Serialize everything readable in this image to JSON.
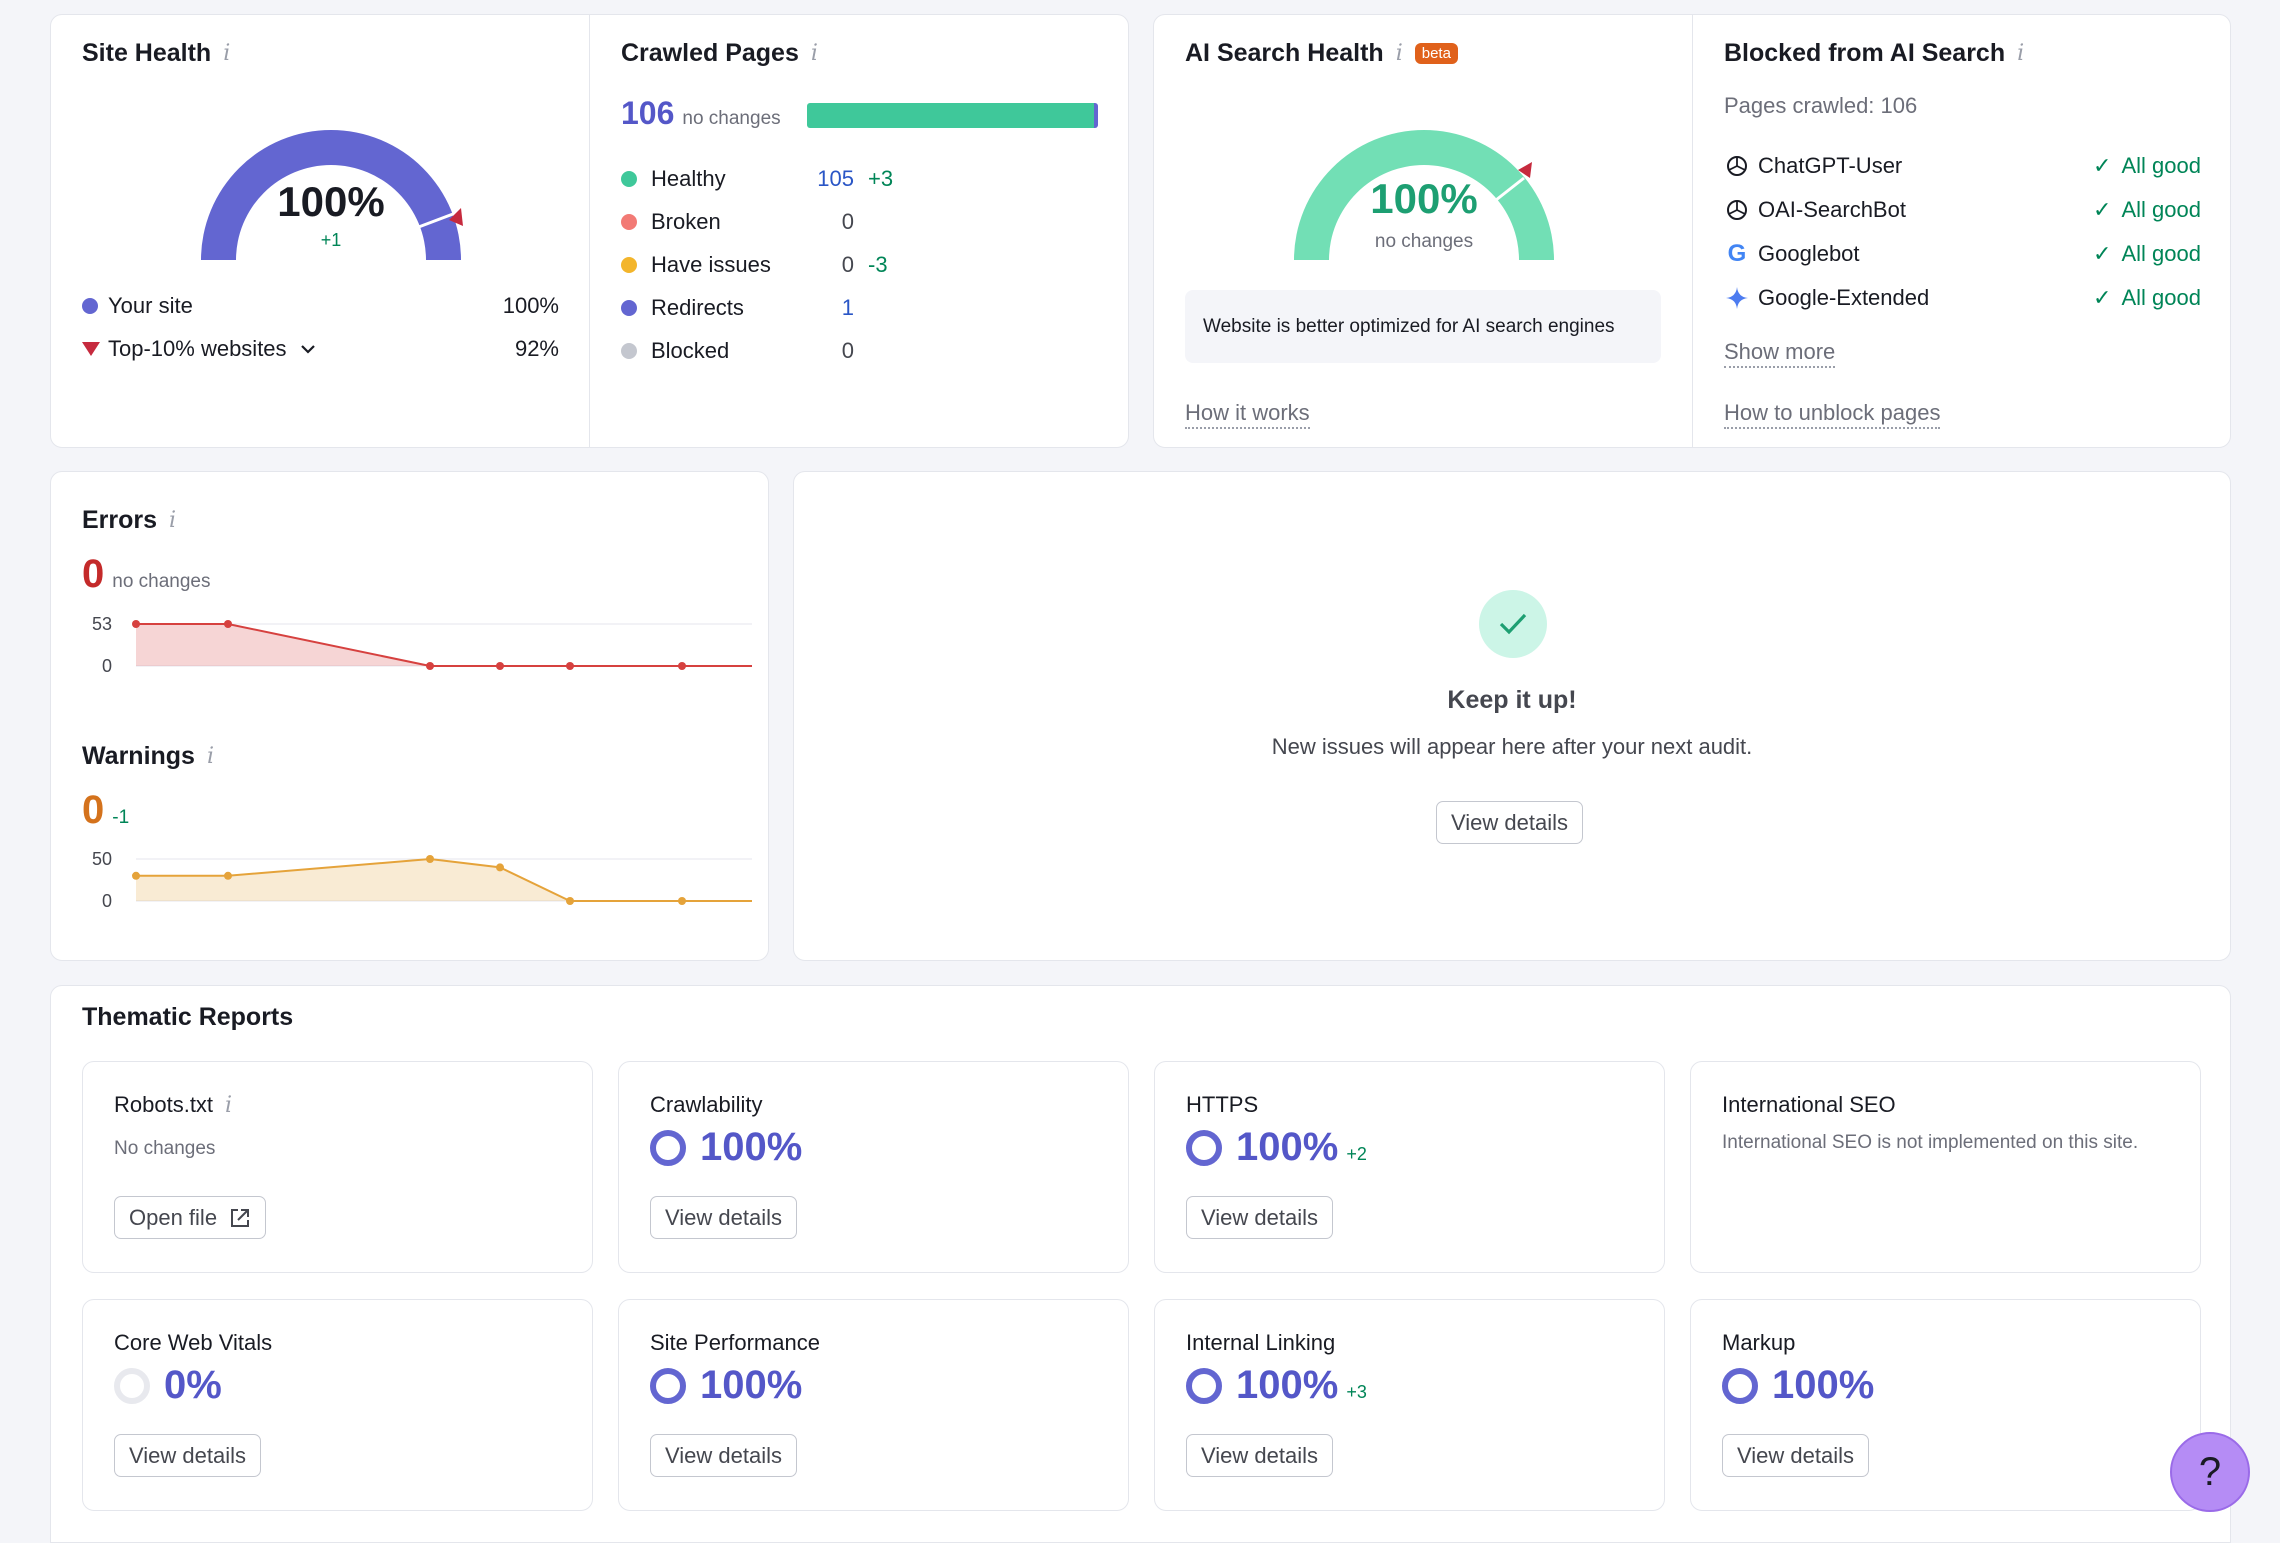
{
  "site_health": {
    "title": "Site Health",
    "score": "100%",
    "delta": "+1",
    "gauge_fill": 1.0,
    "legend": [
      {
        "label": "Your site",
        "value": "100%",
        "color": "#6366d1"
      },
      {
        "label": "Top-10% websites",
        "value": "92%",
        "color": "#c62a3e"
      }
    ]
  },
  "crawled_pages": {
    "title": "Crawled Pages",
    "total": "106",
    "total_note": "no changes",
    "bar_fill": 0.98,
    "items": [
      {
        "label": "Healthy",
        "value": "105",
        "delta": "+3",
        "color": "#3fc89a"
      },
      {
        "label": "Broken",
        "value": "0",
        "delta": "",
        "color": "#f27a75"
      },
      {
        "label": "Have issues",
        "value": "0",
        "delta": "-3",
        "color": "#f3b52b"
      },
      {
        "label": "Redirects",
        "value": "1",
        "delta": "",
        "color": "#6366d1"
      },
      {
        "label": "Blocked",
        "value": "0",
        "delta": "",
        "color": "#c4c7cf"
      }
    ]
  },
  "ai_health": {
    "title": "AI Search Health",
    "badge": "beta",
    "score": "100%",
    "note": "no changes",
    "message": "Website is better optimized for AI search engines",
    "link": "How it works"
  },
  "blocked_ai": {
    "title": "Blocked from AI Search",
    "pages_crawled": "Pages crawled: 106",
    "bots": [
      {
        "name": "ChatGPT-User",
        "icon": "openai-icon",
        "status": "All good"
      },
      {
        "name": "OAI-SearchBot",
        "icon": "openai-icon",
        "status": "All good"
      },
      {
        "name": "Googlebot",
        "icon": "google-icon",
        "status": "All good"
      },
      {
        "name": "Google-Extended",
        "icon": "gemini-icon",
        "status": "All good"
      }
    ],
    "show_more": "Show more",
    "link": "How to unblock pages"
  },
  "errors": {
    "title": "Errors",
    "value": "0",
    "note": "no changes",
    "y_ticks": [
      "53",
      "0"
    ],
    "ylim": [
      0,
      53
    ],
    "points": [
      53,
      53,
      0,
      0,
      0,
      0,
      0
    ],
    "color": "#d6413f"
  },
  "warnings": {
    "title": "Warnings",
    "value": "0",
    "delta": "-1",
    "y_ticks": [
      "50",
      "0"
    ],
    "ylim": [
      0,
      50
    ],
    "points": [
      30,
      30,
      50,
      40,
      0,
      0,
      0
    ],
    "color": "#e5a33a"
  },
  "keep_it_up": {
    "title": "Keep it up!",
    "message": "New issues will appear here after your next audit.",
    "button": "View details"
  },
  "thematic": {
    "title": "Thematic Reports",
    "robots": {
      "title": "Robots.txt",
      "note": "No changes",
      "button": "Open file"
    },
    "crawlability": {
      "title": "Crawlability",
      "value": "100%",
      "button": "View details"
    },
    "https": {
      "title": "HTTPS",
      "value": "100%",
      "delta": "+2",
      "button": "View details"
    },
    "international": {
      "title": "International SEO",
      "note": "International SEO is not implemented on this site."
    },
    "core_web_vitals": {
      "title": "Core Web Vitals",
      "value": "0%",
      "button": "View details"
    },
    "site_performance": {
      "title": "Site Performance",
      "value": "100%",
      "button": "View details"
    },
    "internal_linking": {
      "title": "Internal Linking",
      "value": "100%",
      "delta": "+3",
      "button": "View details"
    },
    "markup": {
      "title": "Markup",
      "value": "100%",
      "button": "View details"
    }
  },
  "help": {
    "label": "?"
  }
}
